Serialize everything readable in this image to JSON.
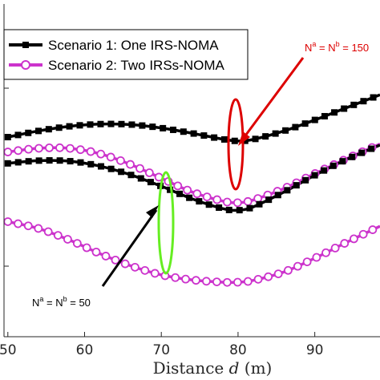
{
  "chart_data": {
    "type": "line",
    "title": "",
    "xlabel": "Distance",
    "xlabel_var": "d",
    "xlabel_unit": "(m)",
    "ylabel": "",
    "xlim": [
      49.5,
      98.5
    ],
    "ylim": [
      0,
      10
    ],
    "xticks": [
      50,
      60,
      70,
      80,
      90
    ],
    "xtick_labels": [
      "50",
      "60",
      "70",
      "80",
      "90"
    ],
    "grid": false,
    "legend_position": "top-left",
    "series": [
      {
        "name": "Scenario 1: One IRS-NOMA",
        "color": "#000000",
        "marker": "square",
        "group": "Na=Nb=150",
        "x": [
          50,
          54,
          58,
          62,
          66,
          70,
          74,
          78,
          80,
          82,
          86,
          90,
          94,
          98.5
        ],
        "y": [
          6.35,
          6.62,
          6.82,
          6.92,
          6.9,
          6.75,
          6.52,
          6.26,
          6.18,
          6.25,
          6.62,
          7.1,
          7.62,
          8.2
        ]
      },
      {
        "name": "Scenario 2: Two IRSs-NOMA",
        "color": "#cc33cc",
        "marker": "circle",
        "group": "Na=Nb=150",
        "x": [
          50,
          54,
          58,
          62,
          66,
          70,
          74,
          78,
          80,
          82,
          86,
          90,
          94,
          98.5
        ],
        "y": [
          5.7,
          5.86,
          5.86,
          5.62,
          5.15,
          4.55,
          3.95,
          3.55,
          3.48,
          3.6,
          4.1,
          4.75,
          5.38,
          6.05
        ]
      },
      {
        "name": "Scenario 1: One IRS-NOMA",
        "color": "#000000",
        "marker": "square",
        "group": "Na=Nb=50",
        "x": [
          50,
          54,
          58,
          62,
          66,
          70,
          74,
          78,
          80,
          82,
          86,
          90,
          94,
          98.5
        ],
        "y": [
          5.2,
          5.32,
          5.3,
          5.08,
          4.7,
          4.2,
          3.65,
          3.22,
          3.15,
          3.3,
          3.95,
          4.68,
          5.35,
          6.0
        ]
      },
      {
        "name": "Scenario 2: Two IRSs-NOMA",
        "color": "#cc33cc",
        "marker": "circle",
        "group": "Na=Nb=50",
        "x": [
          50,
          54,
          58,
          62,
          66,
          70,
          74,
          78,
          80,
          82,
          86,
          90,
          94,
          98.5
        ],
        "y": [
          2.65,
          2.35,
          1.85,
          1.25,
          0.72,
          0.32,
          0.1,
          0.0,
          0.0,
          0.08,
          0.45,
          1.05,
          1.72,
          2.45
        ]
      }
    ],
    "legend": [
      {
        "label": "Scenario 1: One IRS-NOMA",
        "color": "#000000",
        "marker": "square"
      },
      {
        "label": "Scenario 2: Two IRSs-NOMA",
        "color": "#cc33cc",
        "marker": "circle"
      }
    ],
    "annotations": [
      {
        "text_base": "N",
        "sup1": "a",
        "eq": " = N",
        "sup2": "b",
        "value": " = 150",
        "color": "#dd0000",
        "ellipse_color": "#dd0000",
        "ellipse_x": 80
      },
      {
        "text_base": "N",
        "sup1": "a",
        "eq": " = N",
        "sup2": "b",
        "value": " = 50",
        "color": "#000000",
        "ellipse_color": "#66ee22",
        "ellipse_x": 70.5
      }
    ]
  }
}
